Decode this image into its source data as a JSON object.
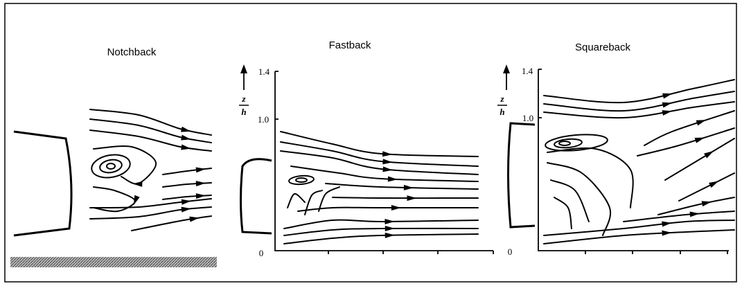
{
  "panels": [
    {
      "title": "Notchback"
    },
    {
      "title": "Fastback",
      "axis": {
        "numerator": "z",
        "denominator": "h",
        "ticks": [
          "1.4",
          "1.0",
          "0"
        ]
      }
    },
    {
      "title": "Squareback",
      "axis": {
        "numerator": "z",
        "denominator": "h",
        "ticks": [
          "1.4",
          "1.0",
          "0"
        ]
      }
    }
  ]
}
